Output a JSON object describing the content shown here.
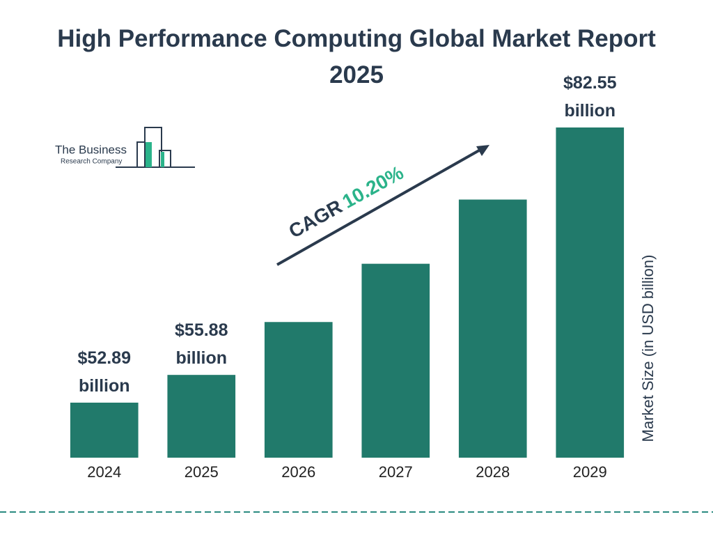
{
  "chart_data": {
    "type": "bar",
    "title": "High Performance Computing Global Market Report 2025",
    "categories": [
      "2024",
      "2025",
      "2026",
      "2027",
      "2028",
      "2029"
    ],
    "values": [
      52.89,
      55.88,
      61.58,
      67.86,
      74.78,
      82.55
    ],
    "value_labels": [
      "$52.89 billion",
      "$55.88 billion",
      null,
      null,
      null,
      "$82.55 billion"
    ],
    "color": "#217a6b",
    "y_axis_label": "Market Size (in USD billion)",
    "annotation": {
      "label": "CAGR",
      "value": "10.20%"
    },
    "logo": {
      "line1": "The Business",
      "line2": "Research Company"
    }
  }
}
